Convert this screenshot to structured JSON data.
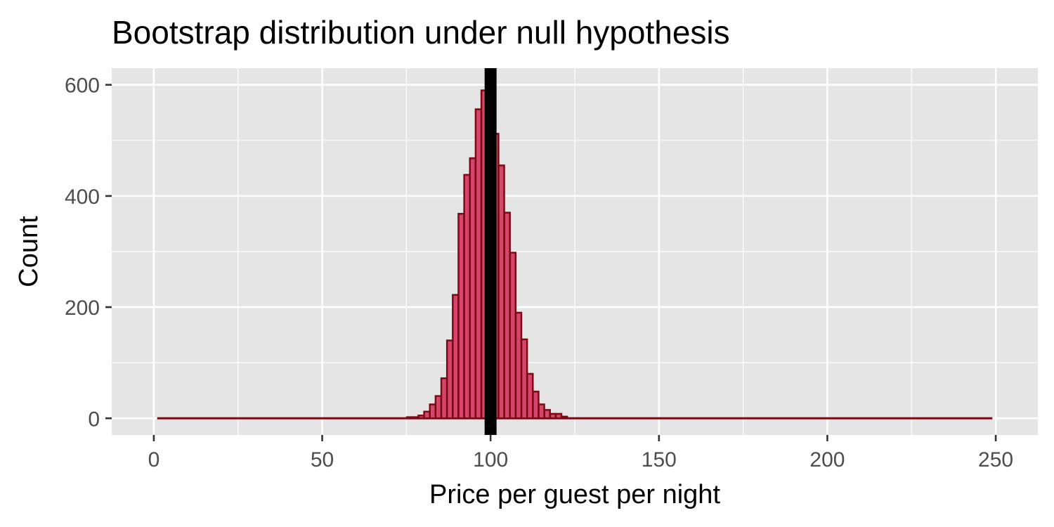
{
  "chart_data": {
    "type": "bar",
    "title": "Bootstrap distribution under null hypothesis",
    "xlabel": "Price per guest per night",
    "ylabel": "Count",
    "xlim": [
      -12.5,
      262.5
    ],
    "ylim": [
      -30,
      630
    ],
    "x_ticks": [
      0,
      50,
      100,
      150,
      200,
      250
    ],
    "x_tick_labels": [
      "0",
      "50",
      "100",
      "150",
      "200",
      "250"
    ],
    "y_ticks": [
      0,
      200,
      400,
      600
    ],
    "y_tick_labels": [
      "0",
      "200",
      "400",
      "600"
    ],
    "bin_width": 1.67,
    "x_range": [
      1,
      249
    ],
    "bins": [
      {
        "x": 76.0,
        "count": 2
      },
      {
        "x": 77.7,
        "count": 2
      },
      {
        "x": 79.4,
        "count": 5
      },
      {
        "x": 81.1,
        "count": 12
      },
      {
        "x": 82.8,
        "count": 25
      },
      {
        "x": 84.5,
        "count": 40
      },
      {
        "x": 86.2,
        "count": 72
      },
      {
        "x": 87.9,
        "count": 140
      },
      {
        "x": 89.6,
        "count": 222
      },
      {
        "x": 91.3,
        "count": 368
      },
      {
        "x": 93.0,
        "count": 438
      },
      {
        "x": 94.7,
        "count": 468
      },
      {
        "x": 96.4,
        "count": 556
      },
      {
        "x": 98.1,
        "count": 590
      },
      {
        "x": 99.8,
        "count": 540
      },
      {
        "x": 101.5,
        "count": 512
      },
      {
        "x": 103.2,
        "count": 455
      },
      {
        "x": 104.9,
        "count": 370
      },
      {
        "x": 106.6,
        "count": 298
      },
      {
        "x": 108.3,
        "count": 190
      },
      {
        "x": 110.0,
        "count": 142
      },
      {
        "x": 111.7,
        "count": 80
      },
      {
        "x": 113.4,
        "count": 48
      },
      {
        "x": 115.1,
        "count": 25
      },
      {
        "x": 116.8,
        "count": 15
      },
      {
        "x": 118.5,
        "count": 8
      },
      {
        "x": 120.2,
        "count": 8
      },
      {
        "x": 121.9,
        "count": 3
      }
    ],
    "reference_line_x": 100,
    "grid": true,
    "colors": {
      "panel_background": "#e5e5e5",
      "grid": "#ffffff",
      "bar_fill": "#d6456b",
      "bar_outline": "#7a0a14",
      "reference_line": "#000000",
      "tick_text": "#4d4d4d",
      "tick_mark": "#333333"
    }
  }
}
